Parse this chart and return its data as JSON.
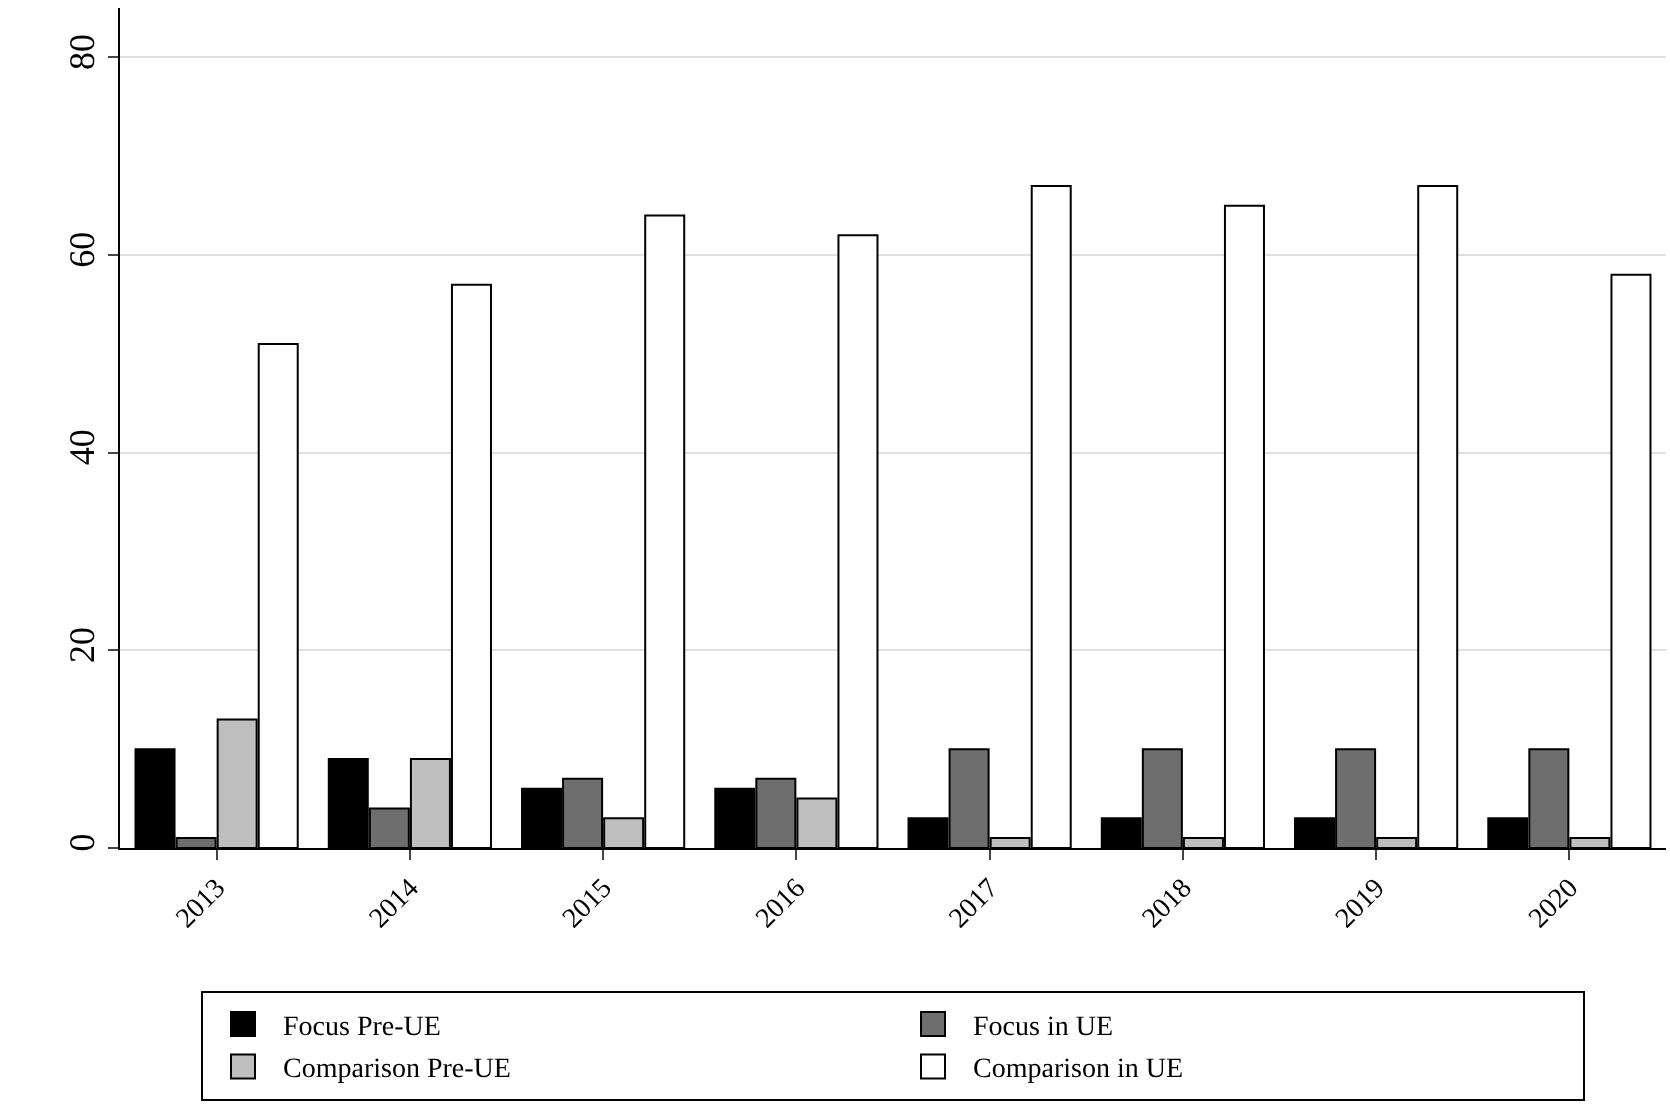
{
  "chart_data": {
    "type": "bar",
    "categories": [
      "2013",
      "2014",
      "2015",
      "2016",
      "2017",
      "2018",
      "2019",
      "2020"
    ],
    "series": [
      {
        "name": "Focus Pre-UE",
        "color": "#000000",
        "values": [
          10,
          9,
          6,
          6,
          3,
          3,
          3,
          3
        ]
      },
      {
        "name": "Focus in UE",
        "color": "#6e6e6e",
        "values": [
          1,
          4,
          7,
          7,
          10,
          10,
          10,
          10
        ]
      },
      {
        "name": "Comparison Pre-UE",
        "color": "#bfbfbf",
        "values": [
          13,
          9,
          3,
          5,
          1,
          1,
          1,
          1
        ]
      },
      {
        "name": "Comparison in UE",
        "color": "#ffffff",
        "values": [
          51,
          57,
          64,
          62,
          67,
          65,
          67,
          58
        ]
      }
    ],
    "ylim": [
      0,
      85
    ],
    "yticks": [
      0,
      20,
      40,
      60,
      80
    ],
    "grid": "y",
    "legend": "bottom"
  }
}
